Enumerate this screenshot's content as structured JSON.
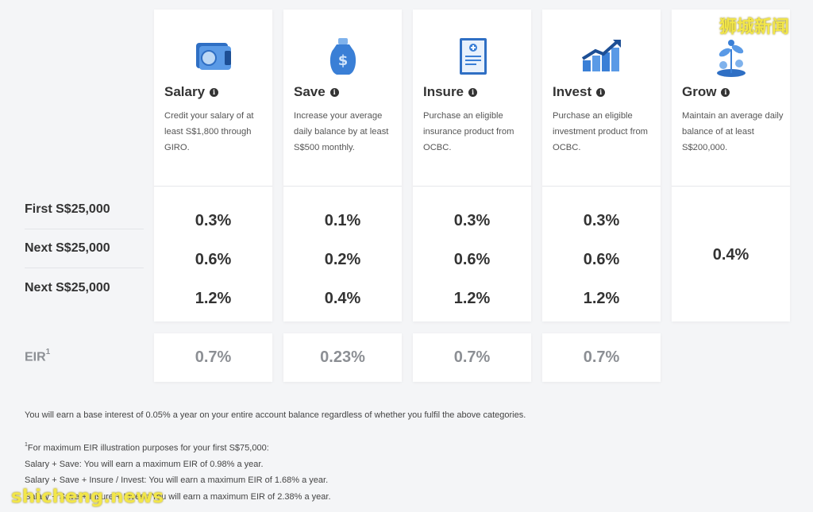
{
  "tiers": [
    "First S$25,000",
    "Next S$25,000",
    "Next S$25,000"
  ],
  "eir_label": "EIR",
  "eir_sup": "1",
  "categories": [
    {
      "title": "Salary",
      "icon": "wallet-icon",
      "desc": "Credit your salary of at least S$1,800 through GIRO.",
      "rates": [
        "0.3%",
        "0.6%",
        "1.2%"
      ],
      "eir": "0.7%"
    },
    {
      "title": "Save",
      "icon": "money-bag-icon",
      "desc": "Increase your average daily balance by at least S$500 monthly.",
      "rates": [
        "0.1%",
        "0.2%",
        "0.4%"
      ],
      "eir": "0.23%"
    },
    {
      "title": "Insure",
      "icon": "insurance-document-icon",
      "desc": "Purchase an eligible insurance product from OCBC.",
      "rates": [
        "0.3%",
        "0.6%",
        "1.2%"
      ],
      "eir": "0.7%"
    },
    {
      "title": "Invest",
      "icon": "investment-chart-icon",
      "desc": "Purchase an eligible investment product from OCBC.",
      "rates": [
        "0.3%",
        "0.6%",
        "1.2%"
      ],
      "eir": "0.7%"
    },
    {
      "title": "Grow",
      "icon": "growing-plant-icon",
      "desc": "Maintain an average daily balance of at least S$200,000.",
      "rate": "0.4%"
    }
  ],
  "notes": {
    "base_interest": "You will earn a base interest of 0.05% a year on your entire account balance regardless of whether you fulfil the above categories.",
    "footnote_sup": "1",
    "illustration_heading": "For maximum EIR illustration purposes for your first S$75,000:",
    "example_1": "Salary + Save: You will earn a maximum EIR of 0.98% a year.",
    "example_2": "Salary + Save + Insure / Invest: You will earn a maximum EIR of 1.68% a year.",
    "example_3": "Salary + Save + Insure + Invest: You will earn a maximum EIR of 2.38% a year."
  },
  "watermarks": {
    "chinese": "狮城新闻",
    "english": "shicheng.news"
  },
  "colors": {
    "accent_blue": "#3b7fd4",
    "muted_grey": "#8c8f94",
    "watermark_yellow": "#f2e64a"
  }
}
